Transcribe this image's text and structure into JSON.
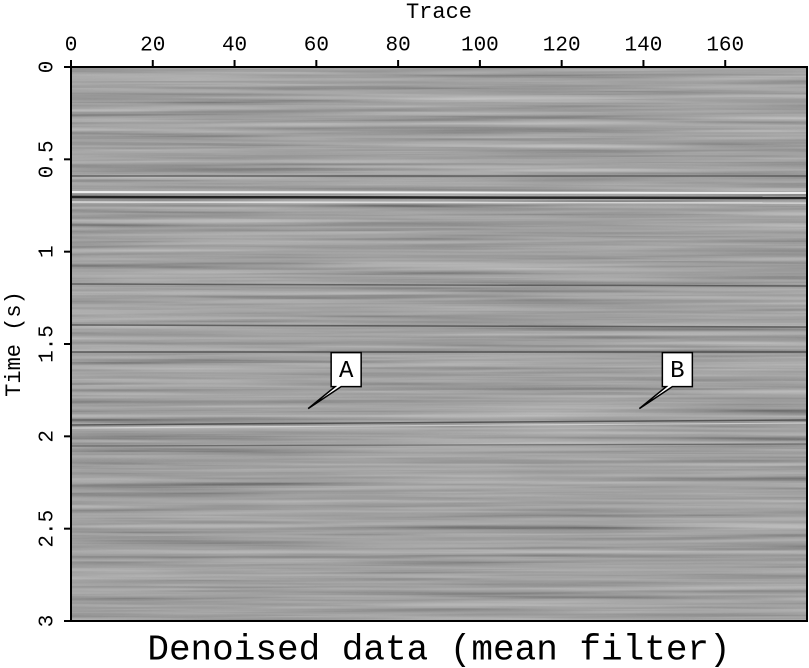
{
  "chart_data": {
    "type": "image",
    "title": "Denoised data (mean filter)",
    "x_label": "Trace",
    "y_label": "Time (s)",
    "xlim": [
      0,
      180
    ],
    "ylim": [
      0,
      3
    ],
    "xticks": [
      0,
      20,
      40,
      60,
      80,
      100,
      120,
      140,
      160
    ],
    "yticks": [
      0,
      0.5,
      1,
      1.5,
      2,
      2.5,
      3
    ],
    "annotations": [
      {
        "text": "A",
        "x": 58,
        "y": 1.85
      },
      {
        "text": "B",
        "x": 139,
        "y": 1.85
      }
    ]
  }
}
